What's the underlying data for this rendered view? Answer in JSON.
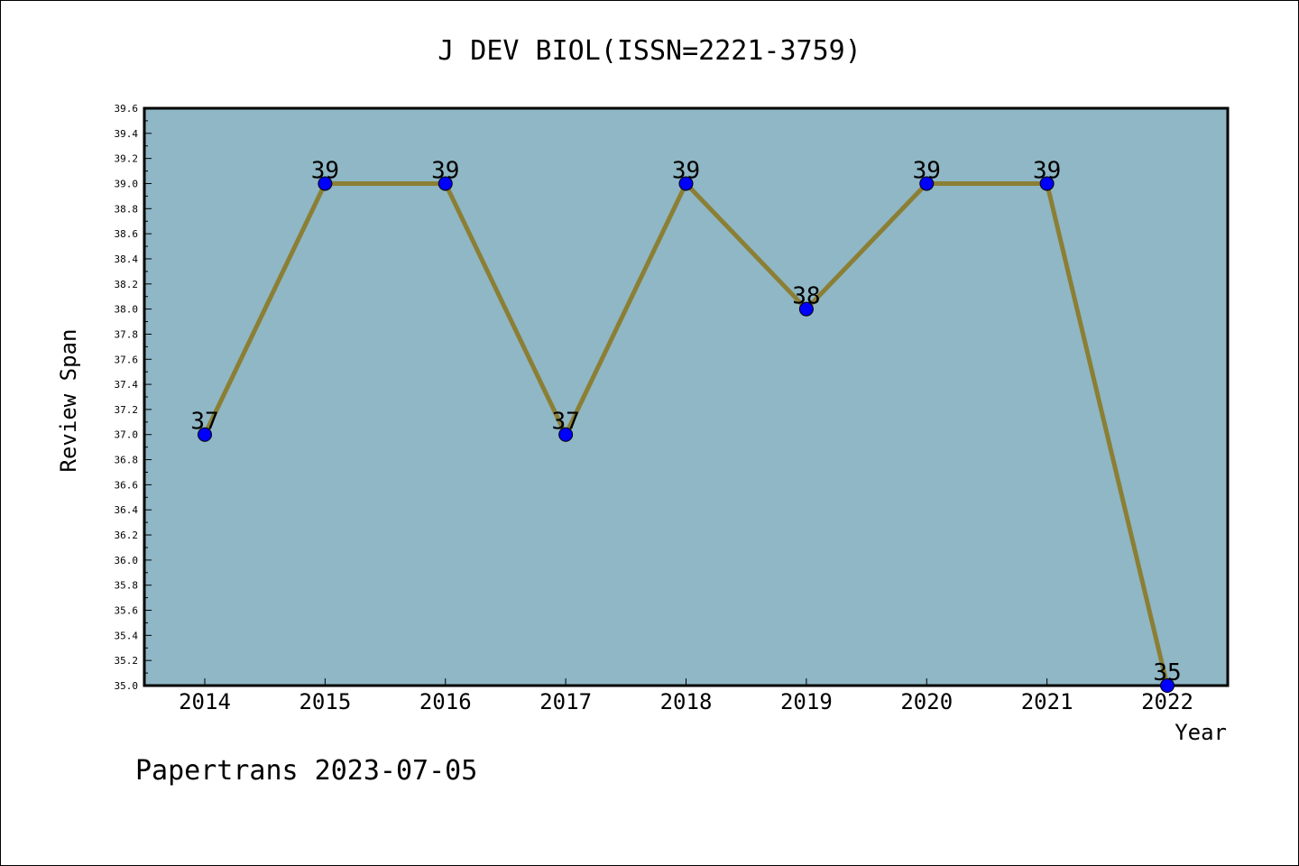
{
  "chart_data": {
    "type": "line",
    "title": "J DEV BIOL(ISSN=2221-3759)",
    "xlabel": "Year",
    "ylabel": "Review Span",
    "categories": [
      "2014",
      "2015",
      "2016",
      "2017",
      "2018",
      "2019",
      "2020",
      "2021",
      "2022"
    ],
    "series": [
      {
        "values": [
          37,
          39,
          39,
          37,
          39,
          38,
          39,
          39,
          35
        ]
      }
    ],
    "data_labels": [
      "37",
      "39",
      "39",
      "37",
      "39",
      "38",
      "39",
      "39",
      "35"
    ],
    "ylim": [
      35.0,
      39.6
    ],
    "ytick_step": 0.2,
    "grid": false,
    "colors": {
      "plot_background": "#8fb7c5",
      "line": "#8b7f35",
      "marker": "#0000ff"
    }
  },
  "footer": "Papertrans 2023-07-05"
}
